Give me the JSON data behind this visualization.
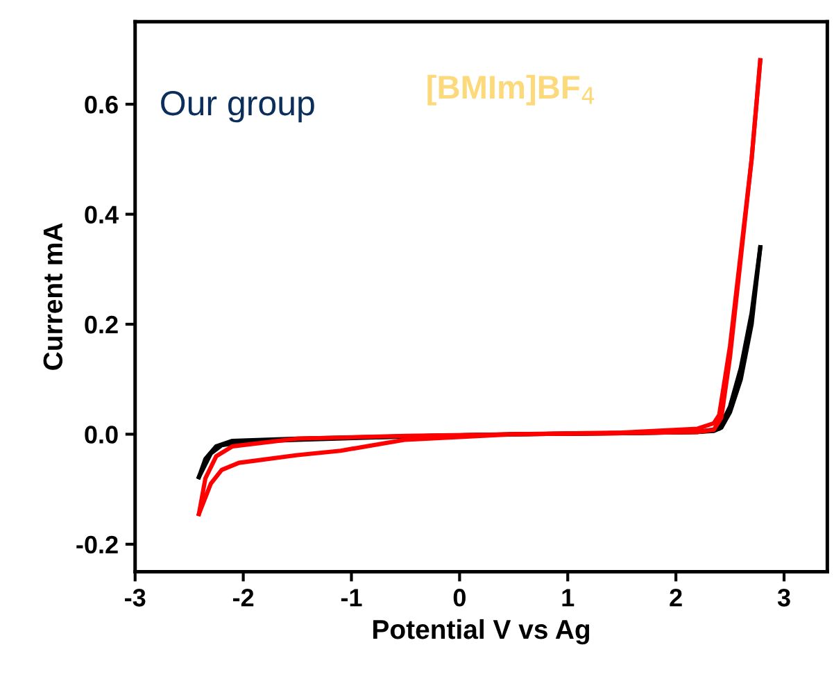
{
  "chart_data": {
    "type": "line",
    "xlabel": "Potential V vs Ag",
    "ylabel": "Current mA",
    "xlim": [
      -3,
      3.4
    ],
    "ylim": [
      -0.25,
      0.75
    ],
    "xticks": [
      -3,
      -2,
      -1,
      0,
      1,
      2,
      3
    ],
    "yticks": [
      {
        "value": -0.2,
        "label": "-0.2"
      },
      {
        "value": 0,
        "label": "0.0"
      },
      {
        "value": 0.2,
        "label": "0.2"
      },
      {
        "value": 0.4,
        "label": "0.4"
      },
      {
        "value": 0.6,
        "label": "0.6"
      }
    ],
    "grid": false,
    "legend": "top left",
    "line_style": "solid",
    "marker": "none",
    "annotations": [
      "[BMIm]BF$_{4}$"
    ],
    "series": [
      {
        "name": "Our group",
        "color": "#000000",
        "x": [
          -2.41,
          -2.35,
          -2.25,
          -2.1,
          -1.5,
          -0.5,
          0.5,
          1.5,
          2.2,
          2.4,
          2.5,
          2.6,
          2.7,
          2.78
        ],
        "values": [
          -0.078,
          -0.045,
          -0.022,
          -0.012,
          -0.008,
          -0.004,
          0.0,
          0.002,
          0.004,
          0.01,
          0.05,
          0.12,
          0.22,
          0.34
        ]
      },
      {
        "color": "#000000",
        "x": [
          -2.41,
          -2.3,
          -2.2,
          -2.0,
          -1.5,
          -0.5,
          0.5,
          1.5,
          2.2,
          2.35,
          2.42,
          2.5,
          2.6,
          2.7,
          2.78
        ],
        "values": [
          -0.078,
          -0.035,
          -0.02,
          -0.014,
          -0.01,
          -0.004,
          0.0,
          0.002,
          0.004,
          0.006,
          0.012,
          0.04,
          0.1,
          0.2,
          0.34
        ]
      },
      {
        "color": "#ff0000",
        "x": [
          -2.41,
          -2.35,
          -2.25,
          -2.1,
          -1.5,
          -0.5,
          0.5,
          1.5,
          2.2,
          2.35,
          2.4,
          2.5,
          2.6,
          2.7,
          2.78
        ],
        "values": [
          -0.145,
          -0.08,
          -0.04,
          -0.022,
          -0.008,
          -0.003,
          0.0,
          0.003,
          0.01,
          0.02,
          0.035,
          0.16,
          0.33,
          0.5,
          0.68
        ]
      },
      {
        "color": "#ff0000",
        "x": [
          -2.41,
          -2.3,
          -2.2,
          -2.04,
          -1.5,
          -1.1,
          -0.5,
          0.5,
          1.5,
          2.2,
          2.35,
          2.42,
          2.5,
          2.6,
          2.7,
          2.78
        ],
        "values": [
          -0.145,
          -0.09,
          -0.065,
          -0.052,
          -0.038,
          -0.03,
          -0.01,
          0.0,
          0.002,
          0.004,
          0.008,
          0.03,
          0.14,
          0.32,
          0.5,
          0.68
        ]
      }
    ]
  }
}
